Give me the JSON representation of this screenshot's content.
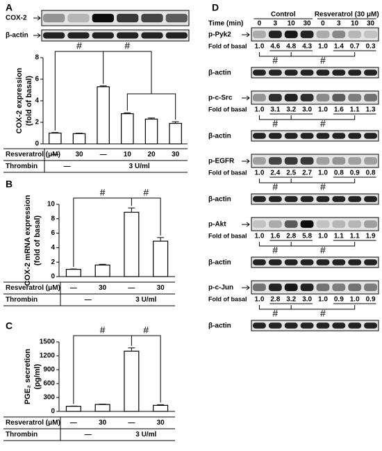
{
  "chart_data": [
    {
      "type": "bar",
      "panel": "A",
      "blot_labels": [
        "COX-2",
        "β-actin"
      ],
      "ylabel": [
        "COX-2 expression",
        "(fold of basal)"
      ],
      "categories": [
        "—",
        "30",
        "—",
        "10",
        "20",
        "30"
      ],
      "values": [
        1.0,
        0.95,
        5.3,
        2.8,
        2.3,
        1.9
      ],
      "errors": [
        0.05,
        0.04,
        0.08,
        0.08,
        0.1,
        0.15
      ],
      "ylim": [
        0,
        8
      ],
      "yticks": [
        0,
        2,
        4,
        6,
        8
      ],
      "color": "#ffffff",
      "row_labels": [
        "Resveratrol (μM)",
        "Thrombin"
      ],
      "thrombin": [
        "—",
        "3 U/ml"
      ],
      "annotations": [
        "#",
        "#"
      ]
    },
    {
      "type": "bar",
      "panel": "B",
      "ylabel": [
        "COX-2  mRNA expression",
        "(fold of basal)"
      ],
      "categories": [
        "—",
        "30",
        "—",
        "30"
      ],
      "values": [
        1.0,
        1.6,
        8.9,
        4.9
      ],
      "errors": [
        0.05,
        0.1,
        0.6,
        0.5
      ],
      "ylim": [
        0,
        10
      ],
      "yticks": [
        0,
        2,
        4,
        6,
        8,
        10
      ],
      "color": "#ffffff",
      "row_labels": [
        "Resveratrol (μM)",
        "Thrombin"
      ],
      "thrombin": [
        "—",
        "3 U/ml"
      ],
      "annotations": [
        "#",
        "#"
      ]
    },
    {
      "type": "bar",
      "panel": "C",
      "ylabel": [
        "PGE₂ secretion",
        "(pg/ml)"
      ],
      "categories": [
        "—",
        "30",
        "—",
        "30"
      ],
      "values": [
        110,
        150,
        1300,
        130
      ],
      "errors": [
        5,
        8,
        70,
        15
      ],
      "ylim": [
        0,
        1500
      ],
      "yticks": [
        0,
        300,
        600,
        900,
        1200,
        1500
      ],
      "color": "#ffffff",
      "row_labels": [
        "Resveratrol (μM)",
        "Thrombin"
      ],
      "thrombin": [
        "—",
        "3 U/ml"
      ],
      "annotations": [
        "#",
        "#"
      ]
    }
  ],
  "panel_d": {
    "panel": "D",
    "time_label": "Time (min)",
    "groups": [
      "Control",
      "Resveratrol (30 μM)"
    ],
    "times": [
      0,
      3,
      10,
      30,
      0,
      3,
      10,
      30
    ],
    "blots": [
      {
        "name": "p-Pyk2",
        "fold_label": "Fold of basal",
        "folds": [
          "1.0",
          "4.6",
          "4.8",
          "4.3",
          "1.0",
          "1.4",
          "0.7",
          "0.3"
        ],
        "annotations": [
          "#",
          "#"
        ],
        "loading": "β-actin"
      },
      {
        "name": "p-c-Src",
        "fold_label": "Fold of basal",
        "folds": [
          "1.0",
          "3.1",
          "3.2",
          "3.0",
          "1.0",
          "1.6",
          "1.1",
          "1.3"
        ],
        "annotations": [
          "#",
          "#"
        ],
        "loading": "β-actin"
      },
      {
        "name": "p-EGFR",
        "fold_label": "Fold of basal",
        "folds": [
          "1.0",
          "2.4",
          "2.5",
          "2.7",
          "1.0",
          "0.8",
          "0.9",
          "0.8"
        ],
        "annotations": [
          "#",
          "#"
        ],
        "loading": "β-actin"
      },
      {
        "name": "p-Akt",
        "fold_label": "Fold of basal",
        "folds": [
          "1.0",
          "1.6",
          "2.8",
          "5.8",
          "1.0",
          "1.1",
          "1.1",
          "1.9"
        ],
        "annotations": [
          "#",
          "#"
        ],
        "loading": "β-actin"
      },
      {
        "name": "p-c-Jun",
        "fold_label": "Fold of basal",
        "folds": [
          "1.0",
          "2.8",
          "3.2",
          "3.0",
          "1.0",
          "0.9",
          "1.0",
          "0.9"
        ],
        "annotations": [
          "#",
          "#"
        ],
        "loading": "β-actin"
      }
    ]
  }
}
